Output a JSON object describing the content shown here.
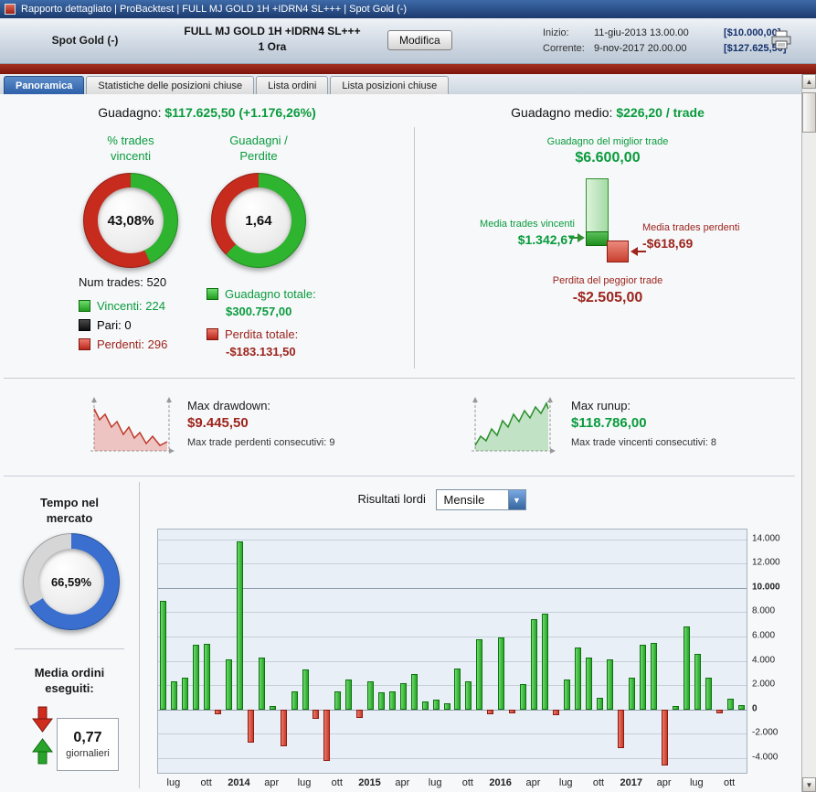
{
  "window": {
    "title": "Rapporto dettagliato | ProBacktest | FULL MJ GOLD 1H +IDRN4 SL+++ | Spot Gold (-)"
  },
  "header": {
    "instrument": "Spot Gold (-)",
    "system_name": "FULL MJ GOLD 1H +IDRN4 SL+++",
    "timeframe": "1 Ora",
    "modify_button": "Modifica",
    "inizio_label": "Inizio:",
    "inizio_date": "11-giu-2013 13.00.00",
    "inizio_capital": "[$10.000,00]",
    "corrente_label": "Corrente:",
    "corrente_date": "9-nov-2017 20.00.00",
    "corrente_capital": "[$127.625,50]"
  },
  "tabs": [
    {
      "label": "Panoramica",
      "active": true
    },
    {
      "label": "Statistiche delle posizioni chiuse",
      "active": false
    },
    {
      "label": "Lista ordini",
      "active": false
    },
    {
      "label": "Lista posizioni chiuse",
      "active": false
    }
  ],
  "overview": {
    "gain_label": "Guadagno:",
    "gain_value": "$117.625,50 (+1.176,26%)",
    "donut_win": {
      "title_line1": "% trades",
      "title_line2": "vincenti",
      "center": "43,08%",
      "green_pct": 43.08
    },
    "donut_pl": {
      "title_line1": "Guadagni /",
      "title_line2": "Perdite",
      "center": "1,64",
      "green_pct": 62.15
    },
    "num_trades_label": "Num trades:",
    "num_trades_value": "520",
    "legend": [
      {
        "label": "Vincenti: 224"
      },
      {
        "label": "Pari: 0"
      },
      {
        "label": "Perdenti: 296"
      }
    ],
    "totale_gain_label": "Guadagno totale:",
    "totale_gain_value": "$300.757,00",
    "totale_loss_label": "Perdita totale:",
    "totale_loss_value": "-$183.131,50",
    "avg_label": "Guadagno medio:",
    "avg_value": "$226,20 / trade",
    "best_label": "Guadagno del miglior trade",
    "best_value": "$6.600,00",
    "avg_win_label": "Media trades vincenti",
    "avg_win_value": "$1.342,67",
    "avg_loss_label": "Media trades perdenti",
    "avg_loss_value": "-$618,69",
    "worst_label": "Perdita del peggior trade",
    "worst_value": "-$2.505,00"
  },
  "extremes": {
    "drawdown_label": "Max drawdown:",
    "drawdown_value": "$9.445,50",
    "drawdown_sub_label": "Max trade perdenti consecutivi:",
    "drawdown_sub_value": "9",
    "runup_label": "Max runup:",
    "runup_value": "$118.786,00",
    "runup_sub_label": "Max trade vincenti consecutivi:",
    "runup_sub_value": "8"
  },
  "bottom_left": {
    "time_title_line1": "Tempo nel",
    "time_title_line2": "mercato",
    "time_value": "66,59%",
    "time_pct": 66.59,
    "orders_title_line1": "Media ordini",
    "orders_title_line2": "eseguiti:",
    "orders_value": "0,77",
    "orders_unit": "giornalieri"
  },
  "results": {
    "label": "Risultati lordi",
    "period_selected": "Mensile"
  },
  "colors": {
    "slice_green": "#2eb42e",
    "slice_red": "#c62b1e",
    "slice_blue": "#3a6fd0",
    "slice_gray": "#d6d6d6",
    "bar_pos_fill": "#41c341",
    "bar_neg_fill": "#d85848",
    "text_green": "#0a9b3c",
    "text_red": "#9d241c"
  },
  "chart_data": {
    "type": "bar",
    "title": "Risultati lordi",
    "period": "Mensile",
    "start_month": "giu-2013",
    "xlabel": "",
    "ylabel": "",
    "ylim": [
      -5200,
      14800
    ],
    "grid": true,
    "values": [
      8900,
      2300,
      2600,
      5300,
      5400,
      -400,
      4100,
      13800,
      -2700,
      4300,
      300,
      -3000,
      1500,
      3300,
      -800,
      -4200,
      1500,
      2500,
      -700,
      2300,
      1400,
      1500,
      2200,
      2900,
      700,
      800,
      500,
      3400,
      2300,
      5800,
      -400,
      5900,
      -300,
      2100,
      7400,
      7900,
      -500,
      2500,
      5100,
      4300,
      1000,
      4100,
      -3200,
      2600,
      5300,
      5500,
      -4600,
      300,
      6800,
      4600,
      2600,
      -300,
      900,
      400
    ],
    "y_ticks": [
      {
        "v": 14000,
        "label": "14.000"
      },
      {
        "v": 12000,
        "label": "12.000"
      },
      {
        "v": 10000,
        "label": "10.000",
        "bold": true
      },
      {
        "v": 8000,
        "label": "8.000"
      },
      {
        "v": 6000,
        "label": "6.000"
      },
      {
        "v": 4000,
        "label": "4.000"
      },
      {
        "v": 2000,
        "label": "2.000"
      },
      {
        "v": 0,
        "label": "0",
        "bold": true
      },
      {
        "v": -2000,
        "label": "-2.000"
      },
      {
        "v": -4000,
        "label": "-4.000"
      }
    ],
    "x_ticks": [
      {
        "i": 1,
        "label": "lug"
      },
      {
        "i": 4,
        "label": "ott"
      },
      {
        "i": 7,
        "label": "2014",
        "bold": true
      },
      {
        "i": 10,
        "label": "apr"
      },
      {
        "i": 13,
        "label": "lug"
      },
      {
        "i": 16,
        "label": "ott"
      },
      {
        "i": 19,
        "label": "2015",
        "bold": true
      },
      {
        "i": 22,
        "label": "apr"
      },
      {
        "i": 25,
        "label": "lug"
      },
      {
        "i": 28,
        "label": "ott"
      },
      {
        "i": 31,
        "label": "2016",
        "bold": true
      },
      {
        "i": 34,
        "label": "apr"
      },
      {
        "i": 37,
        "label": "lug"
      },
      {
        "i": 40,
        "label": "ott"
      },
      {
        "i": 43,
        "label": "2017",
        "bold": true
      },
      {
        "i": 46,
        "label": "apr"
      },
      {
        "i": 49,
        "label": "lug"
      },
      {
        "i": 52,
        "label": "ott"
      }
    ]
  }
}
